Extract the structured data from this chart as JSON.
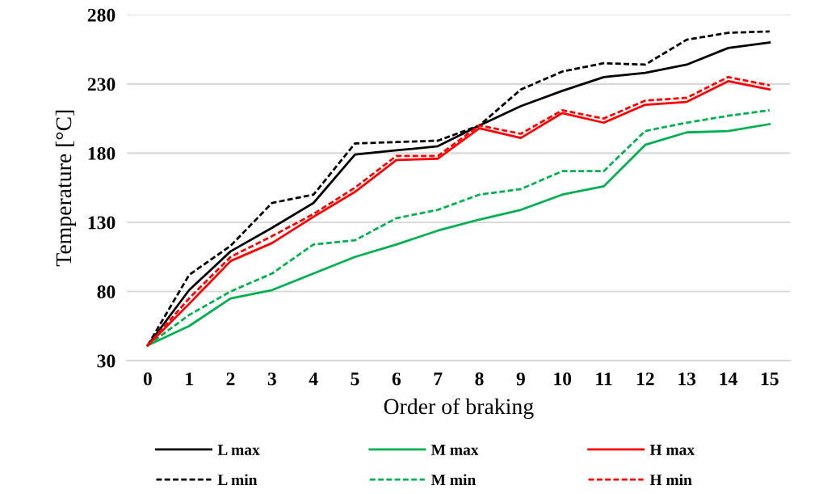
{
  "chart_data": {
    "type": "line",
    "xlabel": "Order of braking",
    "ylabel": "Temperature [°C]",
    "categories": [
      "0",
      "1",
      "2",
      "3",
      "4",
      "5",
      "6",
      "7",
      "8",
      "9",
      "10",
      "11",
      "12",
      "13",
      "14",
      "15"
    ],
    "ylim": [
      30,
      280
    ],
    "yticks": [
      30,
      80,
      130,
      180,
      230,
      280
    ],
    "grid": "y",
    "legend": "bottom",
    "series": [
      {
        "name": "L max",
        "color": "#000000",
        "line_style": "solid",
        "values": [
          41,
          81,
          109,
          126,
          144,
          179,
          182,
          185,
          200,
          214,
          225,
          235,
          238,
          244,
          256,
          260
        ]
      },
      {
        "name": "L min",
        "color": "#000000",
        "line_style": "dashed",
        "values": [
          41,
          92,
          113,
          144,
          150,
          187,
          188,
          189,
          200,
          226,
          239,
          245,
          244,
          262,
          267,
          268
        ]
      },
      {
        "name": "M max",
        "color": "#00b050",
        "line_style": "solid",
        "values": [
          41,
          55,
          75,
          81,
          93,
          105,
          114,
          124,
          132,
          139,
          150,
          156,
          186,
          195,
          196,
          201
        ]
      },
      {
        "name": "M min",
        "color": "#00b050",
        "line_style": "dashed",
        "values": [
          41,
          63,
          80,
          93,
          114,
          117,
          133,
          139,
          150,
          154,
          167,
          167,
          196,
          202,
          207,
          211
        ]
      },
      {
        "name": "H max",
        "color": "#ff0000",
        "line_style": "solid",
        "values": [
          41,
          71,
          102,
          115,
          134,
          152,
          175,
          176,
          198,
          191,
          209,
          202,
          215,
          217,
          232,
          226
        ]
      },
      {
        "name": "H min",
        "color": "#ff0000",
        "line_style": "dashed",
        "values": [
          41,
          75,
          105,
          120,
          136,
          155,
          178,
          178,
          200,
          194,
          211,
          205,
          218,
          220,
          235,
          229
        ]
      }
    ]
  }
}
